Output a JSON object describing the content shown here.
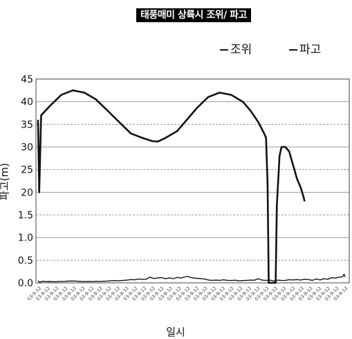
{
  "chart_data": {
    "type": "line",
    "title": "태풍매미 상륙시 조위/ 파고",
    "ylabel": "파고(m)",
    "xlabel": "일시",
    "ylim": [
      0,
      45
    ],
    "yticks": [
      "0.0",
      "0.5",
      "1.0",
      "1.5",
      "20",
      "25",
      "30",
      "35",
      "40",
      "45"
    ],
    "xticks": [
      "03-9-12",
      "03-9-12",
      "03-9-12",
      "03-9-12",
      "03-9-12",
      "03-9-12",
      "03-9-12",
      "03-9-12",
      "03-9-12",
      "03-9-12",
      "03-9-12",
      "03-9-12",
      "03-9-12",
      "03-9-12",
      "03-9-12",
      "03-9-12",
      "03-9-12",
      "03-9-12",
      "03-9-12",
      "03-9-12",
      "03-9-12",
      "03-9-12",
      "03-9-12",
      "03-9-12",
      "03-9-12",
      "03-9-12",
      "03-9-12",
      "03-9-12",
      "03-9-12",
      "03-9-12",
      "03-9-12",
      "03-9-12",
      "03-9-12",
      "03-9-12",
      "03-9-12",
      "03-9-12"
    ],
    "legend_position": "top-right",
    "grid": true,
    "series": [
      {
        "name": "조위",
        "points": [
          [
            0,
            36
          ],
          [
            0.3,
            20
          ],
          [
            0.8,
            37
          ],
          [
            3,
            39
          ],
          [
            6,
            41.5
          ],
          [
            9,
            42.5
          ],
          [
            12,
            42
          ],
          [
            15,
            40.5
          ],
          [
            18,
            38
          ],
          [
            21,
            35.5
          ],
          [
            24,
            33
          ],
          [
            27,
            32
          ],
          [
            29.5,
            31.3
          ],
          [
            31,
            31.2
          ],
          [
            33,
            32
          ],
          [
            36,
            33.5
          ],
          [
            38,
            35.5
          ],
          [
            41,
            38.5
          ],
          [
            44,
            41
          ],
          [
            47,
            42
          ],
          [
            50,
            41.5
          ],
          [
            53,
            40
          ],
          [
            55,
            38
          ],
          [
            57,
            35.5
          ],
          [
            58.5,
            33
          ],
          [
            59,
            32
          ],
          [
            59.2,
            27
          ],
          [
            59.4,
            22
          ],
          [
            59.7,
            0
          ],
          [
            61.5,
            0
          ],
          [
            61.8,
            17
          ],
          [
            62.5,
            28
          ],
          [
            63,
            30
          ],
          [
            64,
            30
          ],
          [
            65,
            29
          ],
          [
            66,
            26
          ],
          [
            67,
            23
          ],
          [
            68,
            21
          ],
          [
            68.7,
            19
          ],
          [
            69,
            18
          ]
        ]
      },
      {
        "name": "파고",
        "points": [
          [
            0,
            0.5
          ],
          [
            0.4,
            0.1
          ],
          [
            1,
            0.3
          ],
          [
            1.5,
            0.35
          ],
          [
            2,
            0.27
          ],
          [
            3,
            0.3
          ],
          [
            4,
            0.25
          ],
          [
            5,
            0.28
          ],
          [
            6,
            0.32
          ],
          [
            7,
            0.34
          ],
          [
            8,
            0.38
          ],
          [
            9,
            0.42
          ],
          [
            10,
            0.36
          ],
          [
            11,
            0.3
          ],
          [
            12,
            0.28
          ],
          [
            13,
            0.3
          ],
          [
            14,
            0.28
          ],
          [
            15,
            0.33
          ],
          [
            16,
            0.32
          ],
          [
            17,
            0.35
          ],
          [
            18,
            0.4
          ],
          [
            19,
            0.47
          ],
          [
            20,
            0.5
          ],
          [
            21,
            0.45
          ],
          [
            22,
            0.55
          ],
          [
            23,
            0.6
          ],
          [
            24,
            0.72
          ],
          [
            25,
            0.68
          ],
          [
            26,
            0.85
          ],
          [
            27,
            0.75
          ],
          [
            28,
            0.8
          ],
          [
            29,
            1.25
          ],
          [
            30,
            0.95
          ],
          [
            31,
            1.1
          ],
          [
            32,
            1.15
          ],
          [
            33,
            0.9
          ],
          [
            34,
            1.1
          ],
          [
            35,
            0.92
          ],
          [
            36,
            1.2
          ],
          [
            37,
            1.05
          ],
          [
            38,
            1.3
          ],
          [
            38.7,
            1.45
          ],
          [
            39.5,
            1.2
          ],
          [
            40,
            1.1
          ],
          [
            41,
            1.0
          ],
          [
            42,
            0.95
          ],
          [
            43,
            0.85
          ],
          [
            44,
            0.65
          ],
          [
            45,
            0.55
          ],
          [
            46,
            0.6
          ],
          [
            47,
            0.55
          ],
          [
            48,
            0.68
          ],
          [
            49,
            0.55
          ],
          [
            50,
            0.52
          ],
          [
            51,
            0.58
          ],
          [
            52,
            0.45
          ],
          [
            53,
            0.5
          ],
          [
            54,
            0.55
          ],
          [
            55,
            0.6
          ],
          [
            56,
            0.58
          ],
          [
            57,
            0.9
          ],
          [
            58,
            0.6
          ],
          [
            59,
            0.55
          ],
          [
            60,
            0.6
          ],
          [
            61,
            0.4
          ],
          [
            62,
            0.6
          ],
          [
            63,
            0.52
          ],
          [
            64,
            0.55
          ],
          [
            65,
            0.7
          ],
          [
            66,
            0.65
          ],
          [
            67,
            0.72
          ],
          [
            68,
            0.62
          ],
          [
            69,
            0.8
          ],
          [
            70,
            0.72
          ],
          [
            71,
            0.55
          ],
          [
            72,
            0.85
          ],
          [
            73,
            0.65
          ],
          [
            74,
            0.9
          ],
          [
            75,
            0.8
          ],
          [
            76,
            1.15
          ],
          [
            77,
            1.05
          ],
          [
            78,
            1.25
          ],
          [
            78.8,
            1.35
          ],
          [
            79.2,
            1.9
          ],
          [
            79.5,
            1.3
          ]
        ]
      }
    ]
  }
}
